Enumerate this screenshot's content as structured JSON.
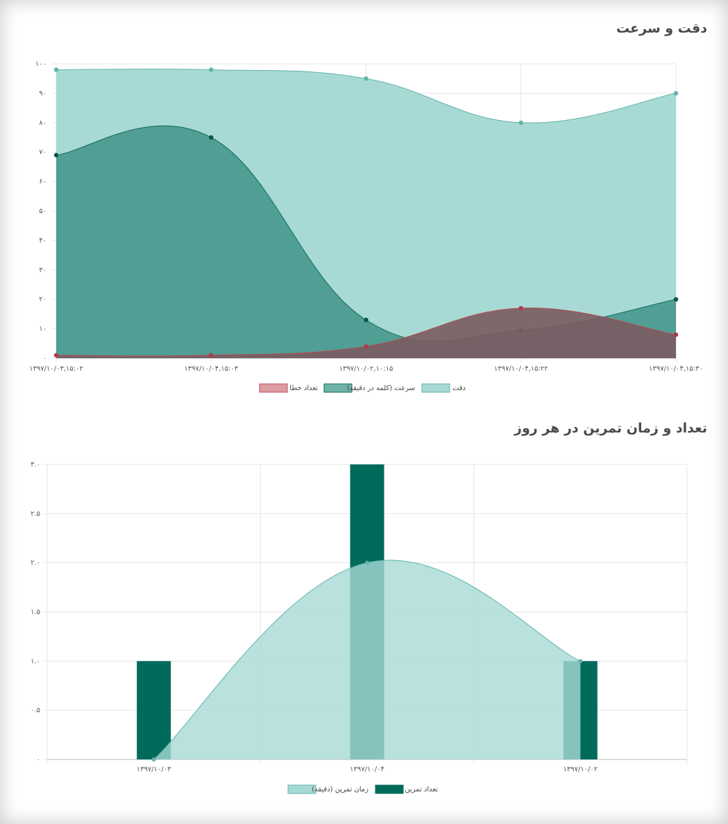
{
  "charts": {
    "accuracy_speed_title": "دقت و سرعت",
    "daily_practice_title": "تعداد و زمان تمرین در هر روز"
  },
  "chart_data": [
    {
      "type": "area",
      "title": "دقت و سرعت",
      "categories": [
        "۱۳۹۷/۱۰/۰۳,۱۵:۰۲",
        "۱۳۹۷/۱۰/۰۴,۱۵:۰۳",
        "۱۳۹۷/۱۰/۰۲,۱۰:۱۵",
        "۱۳۹۷/۱۰/۰۴,۱۵:۲۲",
        "۱۳۹۷/۱۰/۰۴,۱۵:۳۰"
      ],
      "ylim": [
        0,
        100
      ],
      "yticks": [
        "۰",
        "۱۰",
        "۲۰",
        "۳۰",
        "۴۰",
        "۵۰",
        "۶۰",
        "۷۰",
        "۸۰",
        "۹۰",
        "۱۰۰"
      ],
      "series": [
        {
          "name": "دقت",
          "values": [
            98,
            98,
            95,
            80,
            90
          ],
          "fill": "#a8dad5",
          "stroke": "#5fb3aa",
          "point": "#5fb3aa"
        },
        {
          "name": "سرعت (کلمه در دقیقه)",
          "values": [
            69,
            75,
            13,
            9.5,
            20
          ],
          "fill": "#509e94",
          "stroke": "#0e6b5c",
          "point": "#0b5447"
        },
        {
          "name": "تعداد خطا",
          "values": [
            1,
            1,
            4,
            17,
            8
          ],
          "fill": "#7a5b60",
          "stroke": "#b5484f",
          "point": "#b0394a",
          "fill_opacity": 0.9
        }
      ],
      "legend": [
        {
          "label": "تعداد خطا",
          "fill": "#dc9da3",
          "stroke": "#c0505a"
        },
        {
          "label": "سرعت (کلمه در دقیقه)",
          "fill": "#6fb2a8",
          "stroke": "#0e6b5c"
        },
        {
          "label": "دقت",
          "fill": "#a8dad5",
          "stroke": "#5fb3aa"
        }
      ]
    },
    {
      "type": "bar",
      "title": "تعداد و زمان تمرین در هر روز",
      "categories": [
        "۱۳۹۷/۱۰/۰۳",
        "۱۳۹۷/۱۰/۰۴",
        "۱۳۹۷/۱۰/۰۲"
      ],
      "ylim": [
        0,
        3
      ],
      "yticks": [
        "۰",
        "۰.۵",
        "۱.۰",
        "۱.۵",
        "۲.۰",
        "۲.۵",
        "۳.۰"
      ],
      "series": [
        {
          "name": "تعداد تمرین",
          "chart": "bar",
          "values": [
            1,
            3,
            1
          ],
          "fill": "#006b5b"
        },
        {
          "name": "زمان تمرین (دقیقه)",
          "chart": "area",
          "values": [
            0,
            2,
            1
          ],
          "fill": "#a8dad5",
          "stroke": "#5fb3aa"
        }
      ],
      "legend": [
        {
          "label": "زمان تمرین (دقیقه)",
          "fill": "#a8dad5",
          "stroke": "#5fb3aa"
        },
        {
          "label": "تعداد تمرین",
          "fill": "#006b5b",
          "stroke": "#006b5b"
        }
      ]
    }
  ]
}
